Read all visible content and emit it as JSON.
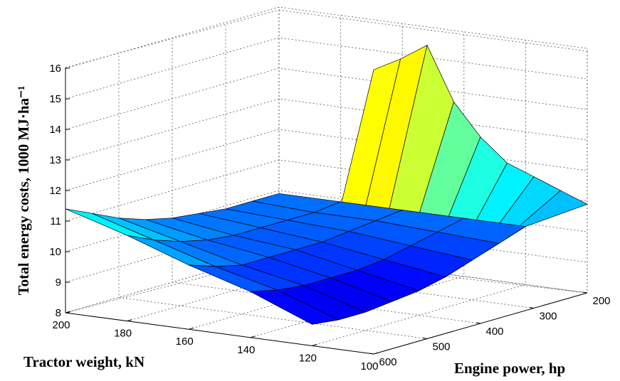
{
  "chart_data": {
    "type": "surface",
    "title": "",
    "zlabel": "Total energy costs, 1000 MJ·ha⁻¹",
    "xlabel": "Tractor weight, kN",
    "ylabel": "Engine power, hp",
    "zlim": [
      8,
      16
    ],
    "z_ticks": [
      "8",
      "9",
      "10",
      "11",
      "12",
      "13",
      "14",
      "15",
      "16"
    ],
    "weight_ticks": [
      "200",
      "180",
      "160",
      "140",
      "120",
      "100"
    ],
    "power_ticks": [
      "200",
      "300",
      "400",
      "500",
      "600"
    ],
    "grid": true,
    "colormap": "jet",
    "tractor_weight_kN": [
      200,
      180,
      160,
      140,
      120,
      100
    ],
    "engine_power_hp": [
      200,
      250,
      300,
      350,
      400,
      450,
      500,
      550,
      600
    ],
    "energy_costs_1000MJ_per_ha": [
      [
        9.9,
        9.9,
        9.9,
        10.0,
        10.1,
        10.3,
        10.6,
        11.0,
        11.4
      ],
      [
        9.9,
        9.8,
        9.8,
        9.8,
        9.8,
        9.9,
        10.1,
        10.4,
        10.8
      ],
      [
        9.9,
        9.8,
        9.7,
        9.6,
        9.6,
        9.6,
        9.6,
        9.8,
        10.1
      ],
      [
        9.9,
        9.7,
        9.5,
        9.3,
        9.2,
        9.2,
        9.2,
        9.3,
        9.5
      ],
      [
        9.9,
        9.6,
        9.3,
        9.0,
        8.8,
        8.7,
        8.6,
        8.6,
        8.7
      ],
      [
        10.9,
        11.6,
        12.3,
        13.0,
        14.1,
        15.5,
        17.6,
        17.4,
        17.3
      ]
    ]
  }
}
